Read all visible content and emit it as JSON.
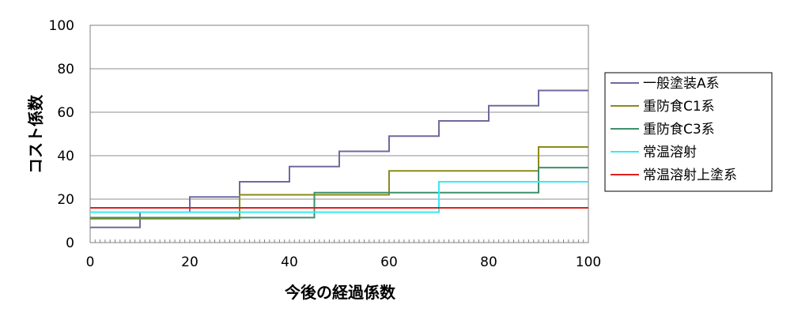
{
  "chart_data": {
    "type": "line",
    "title": "",
    "xlabel": "今後の経過係数",
    "ylabel": "コスト係数",
    "xlim": [
      0,
      100
    ],
    "ylim": [
      0,
      100
    ],
    "xticks": [
      "0",
      "20",
      "40",
      "60",
      "80",
      "100"
    ],
    "yticks": [
      "0",
      "20",
      "40",
      "60",
      "80",
      "100"
    ],
    "grid": "horizontal",
    "legend": "right",
    "series": [
      {
        "name": "一般塗装A系",
        "color": "#6e6a9e",
        "x": [
          0,
          10,
          10,
          20,
          20,
          30,
          30,
          40,
          40,
          50,
          50,
          60,
          60,
          70,
          70,
          80,
          80,
          90,
          90,
          100
        ],
        "y": [
          7,
          7,
          14,
          14,
          21,
          21,
          28,
          28,
          35,
          35,
          42,
          42,
          49,
          49,
          56,
          56,
          63,
          63,
          70,
          70
        ]
      },
      {
        "name": "重防食C1系",
        "color": "#8b8b1a",
        "x": [
          0,
          30,
          30,
          60,
          60,
          90,
          90,
          100
        ],
        "y": [
          11,
          11,
          22,
          22,
          33,
          33,
          44,
          44
        ]
      },
      {
        "name": "重防食C3系",
        "color": "#3f8f6b",
        "x": [
          0,
          45,
          45,
          90,
          90,
          100
        ],
        "y": [
          11.5,
          11.5,
          23,
          23,
          34.5,
          34.5
        ]
      },
      {
        "name": "常温溶射",
        "color": "#33ecf4",
        "x": [
          0,
          70,
          70,
          100
        ],
        "y": [
          14,
          14,
          28,
          28
        ]
      },
      {
        "name": "常温溶射上塗系",
        "color": "#e0201c",
        "x": [
          0,
          100
        ],
        "y": [
          16,
          16
        ]
      }
    ]
  }
}
